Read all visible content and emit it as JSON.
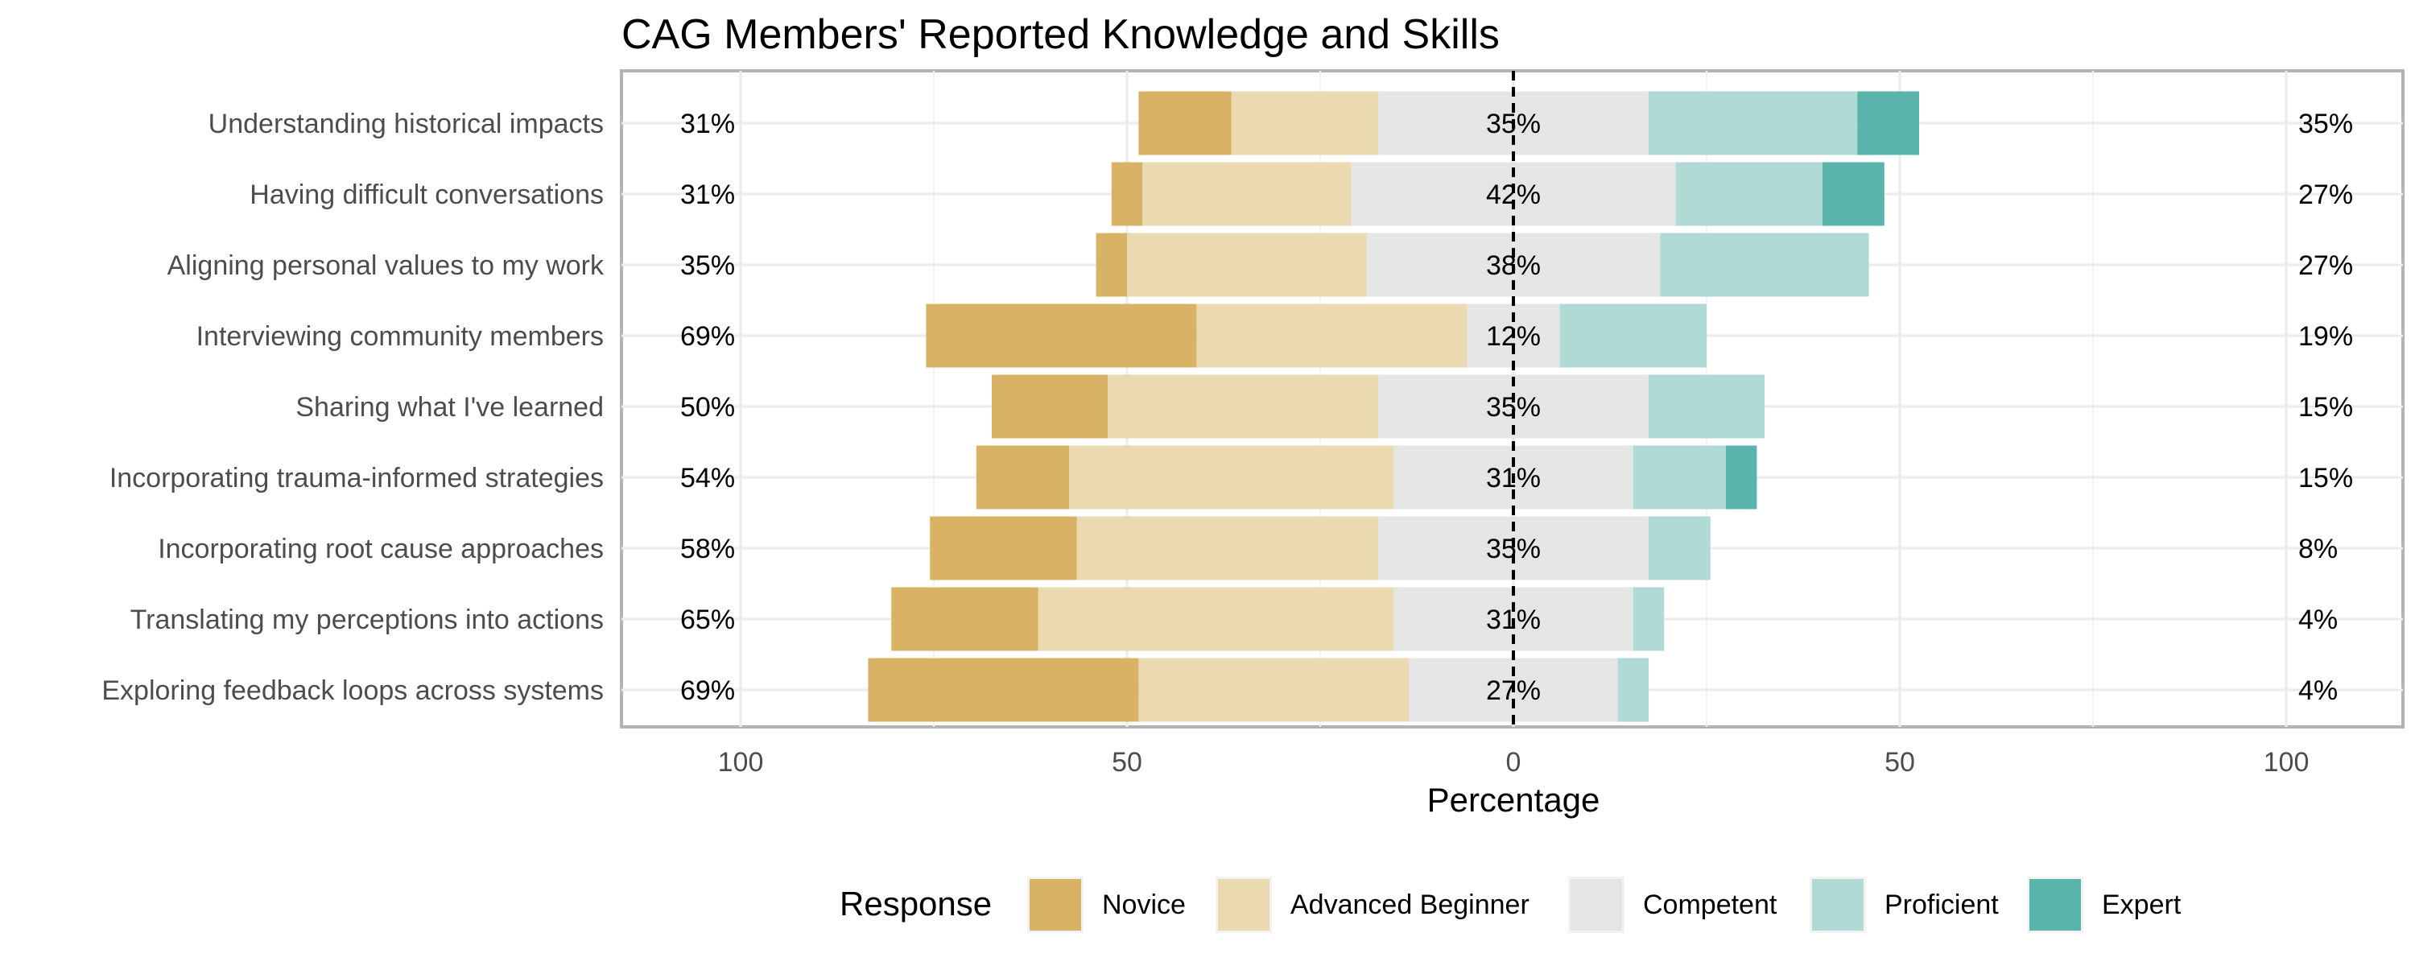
{
  "chart_data": {
    "type": "bar",
    "subtype": "diverging-stacked-likert",
    "title": "CAG Members' Reported Knowledge and Skills",
    "xlabel": "Percentage",
    "ylabel": "",
    "xlim": [
      -100,
      100
    ],
    "xticks": [
      -100,
      -50,
      0,
      50,
      100
    ],
    "xtick_labels": [
      "100",
      "50",
      "0",
      "50",
      "100"
    ],
    "grid": true,
    "legend": {
      "title": "Response",
      "placement": "bottom",
      "entries": [
        "Novice",
        "Advanced Beginner",
        "Competent",
        "Proficient",
        "Expert"
      ]
    },
    "colors": {
      "Novice": "#d8b365",
      "Advanced Beginner": "#ebd9b2",
      "Competent": "#e5e5e5",
      "Proficient": "#afdad6",
      "Expert": "#5ab4ac"
    },
    "categories": [
      "Understanding historical impacts",
      "Having difficult conversations",
      "Aligning personal values to my work",
      "Interviewing community members",
      "Sharing what I've learned",
      "Incorporating trauma-informed strategies",
      "Incorporating root cause approaches",
      "Translating my perceptions into actions",
      "Exploring feedback loops across systems"
    ],
    "series": [
      {
        "name": "Novice",
        "values": [
          12,
          4,
          4,
          35,
          15,
          12,
          19,
          19,
          35
        ]
      },
      {
        "name": "Advanced Beginner",
        "values": [
          19,
          27,
          31,
          35,
          35,
          42,
          39,
          46,
          35
        ]
      },
      {
        "name": "Competent",
        "values": [
          35,
          42,
          38,
          12,
          35,
          31,
          35,
          31,
          27
        ]
      },
      {
        "name": "Proficient",
        "values": [
          27,
          19,
          27,
          19,
          15,
          12,
          8,
          4,
          4
        ]
      },
      {
        "name": "Expert",
        "values": [
          8,
          8,
          0,
          0,
          0,
          4,
          0,
          0,
          0
        ]
      }
    ],
    "left_labels": [
      "31%",
      "31%",
      "35%",
      "69%",
      "50%",
      "54%",
      "58%",
      "65%",
      "69%"
    ],
    "center_labels": [
      "35%",
      "42%",
      "38%",
      "12%",
      "35%",
      "31%",
      "35%",
      "31%",
      "27%"
    ],
    "right_labels": [
      "35%",
      "27%",
      "27%",
      "19%",
      "15%",
      "15%",
      "8%",
      "4%",
      "4%"
    ]
  }
}
